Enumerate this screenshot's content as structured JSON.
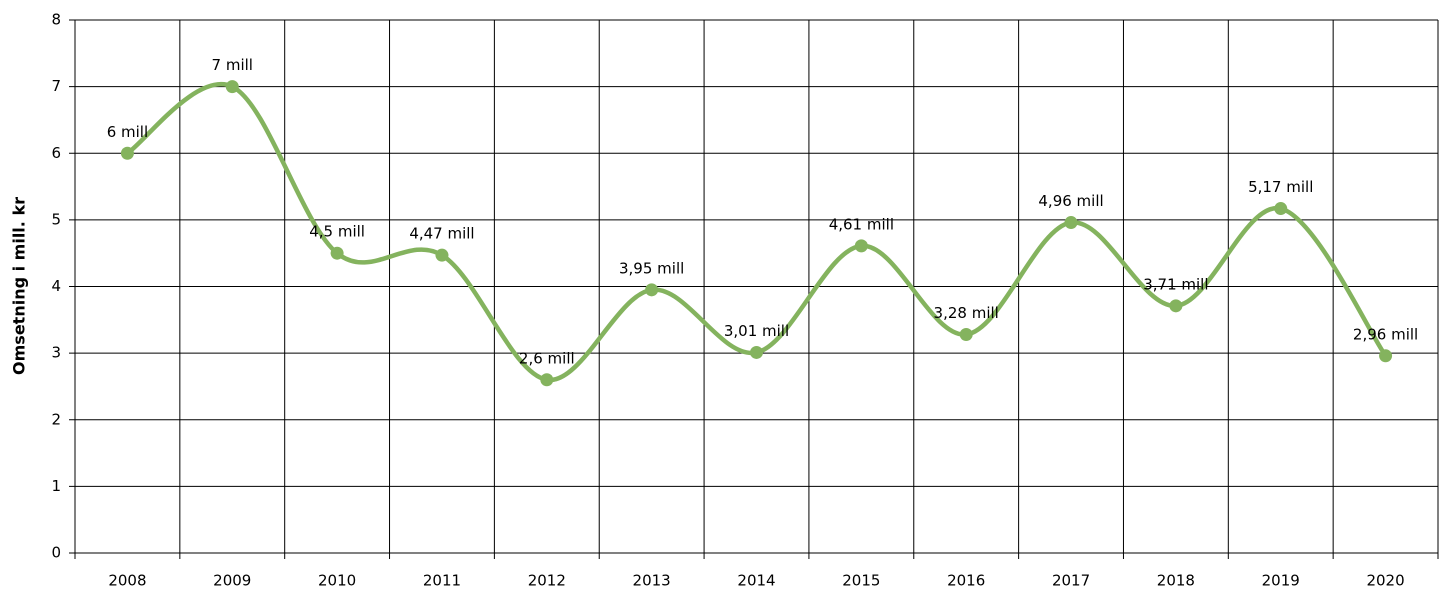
{
  "chart_data": {
    "type": "line",
    "y_label": "Omsetning i mill. kr",
    "categories": [
      "2008",
      "2009",
      "2010",
      "2011",
      "2012",
      "2013",
      "2014",
      "2015",
      "2016",
      "2017",
      "2018",
      "2019",
      "2020"
    ],
    "series": [
      {
        "name": "Omsetning",
        "color": "#84b35e",
        "values": [
          6,
          7,
          4.5,
          4.47,
          2.6,
          3.95,
          3.01,
          4.61,
          3.28,
          4.96,
          3.71,
          5.17,
          2.96
        ],
        "value_labels": [
          "6 mill",
          "7 mill",
          "4,5 mill",
          "4,47 mill",
          "2,6 mill",
          "3,95 mill",
          "3,01 mill",
          "4,61 mill",
          "3,28 mill",
          "4,96 mill",
          "3,71 mill",
          "5,17 mill",
          "2,96 mill"
        ]
      }
    ],
    "ylim": [
      0,
      8
    ],
    "yticks": [
      0,
      1,
      2,
      3,
      4,
      5,
      6,
      7,
      8
    ],
    "grid": true,
    "smooth": true
  }
}
